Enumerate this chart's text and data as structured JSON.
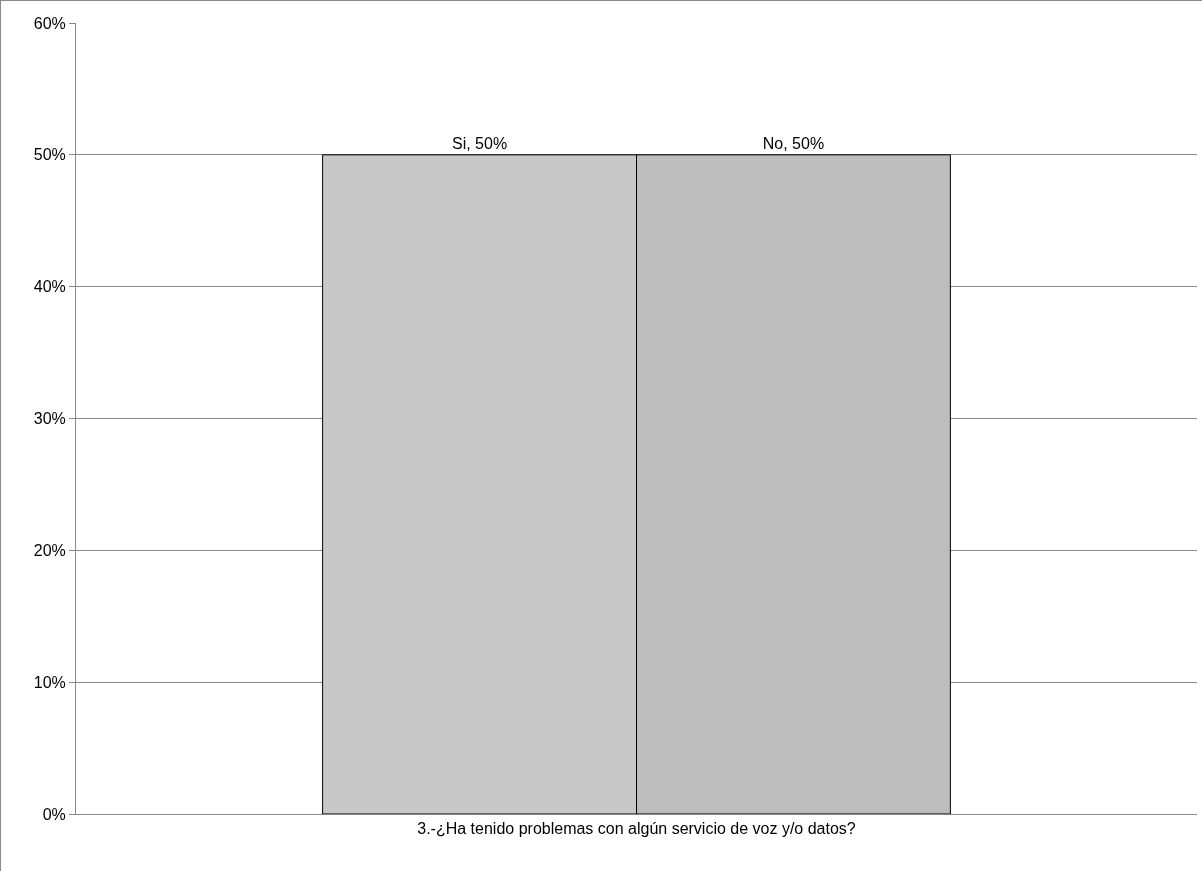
{
  "chart_data": {
    "type": "bar",
    "categories": [
      "3.-¿Ha tenido problemas con algún servicio de voz y/o datos?"
    ],
    "series": [
      {
        "color": "#c8c8c8",
        "values": [
          50
        ],
        "value_labels": [
          "Si, 50%"
        ]
      },
      {
        "color": "#bdbdbd",
        "values": [
          50
        ],
        "value_labels": [
          "No, 50%"
        ]
      }
    ],
    "ylim": [
      0,
      60
    ],
    "yticks": [
      {
        "value": 0,
        "label": "0%"
      },
      {
        "value": 10,
        "label": "10%"
      },
      {
        "value": 20,
        "label": "20%"
      },
      {
        "value": 30,
        "label": "30%"
      },
      {
        "value": 40,
        "label": "40%"
      },
      {
        "value": 50,
        "label": "50%"
      },
      {
        "value": 60,
        "label": "60%"
      }
    ],
    "grid": "y",
    "legend": false
  }
}
